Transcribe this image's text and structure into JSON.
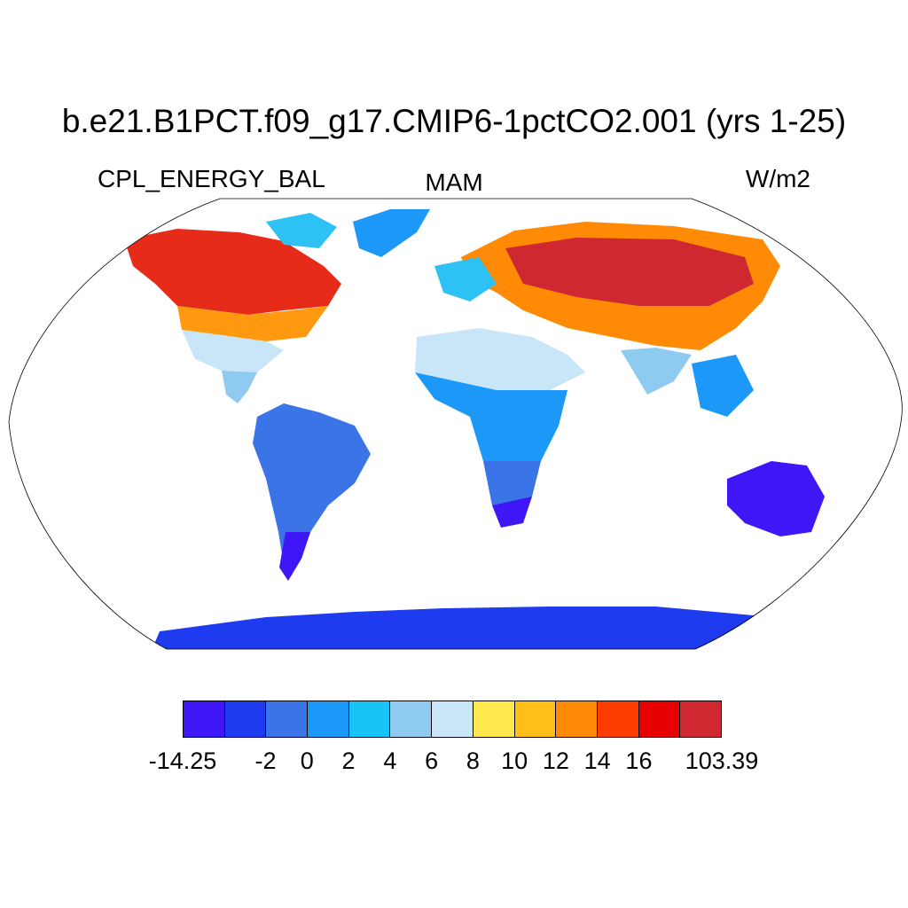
{
  "title": "b.e21.B1PCT.f09_g17.CMIP6-1pctCO2.001 (yrs 1-25)",
  "left_label": "CPL_ENERGY_BAL",
  "center_label": "MAM",
  "right_label": "W/m2",
  "colorbar": {
    "colors": [
      "#3f16f5",
      "#1f3bf0",
      "#3b74e6",
      "#1b98f8",
      "#17c3f7",
      "#8fcaf0",
      "#c8e6f8",
      "#ffe84d",
      "#ffbf18",
      "#ff8a05",
      "#ff3d00",
      "#e60000",
      "#d02830"
    ],
    "labels": [
      "-14.25",
      "-2",
      "0",
      "2",
      "4",
      "6",
      "8",
      "10",
      "12",
      "14",
      "16",
      "103.39"
    ],
    "label_positions": [
      0,
      2,
      3,
      4,
      5,
      6,
      7,
      8,
      9,
      10,
      11,
      13
    ]
  }
}
